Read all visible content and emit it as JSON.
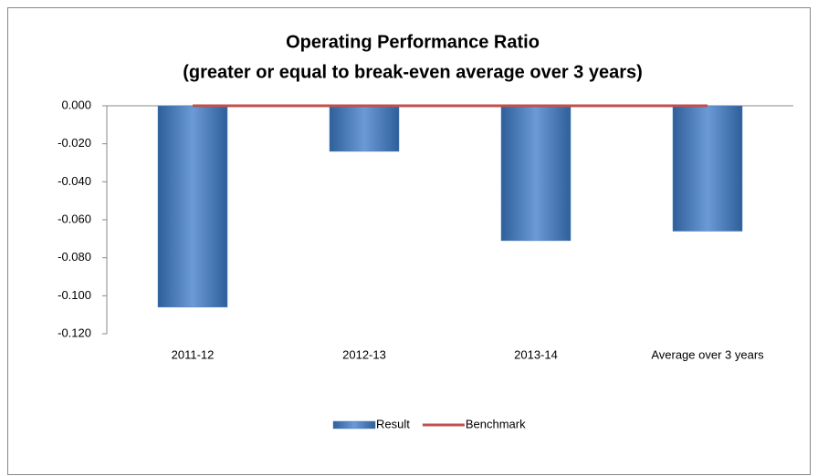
{
  "chart_data": {
    "type": "bar",
    "title": "Operating Performance Ratio",
    "subtitle": "(greater or equal to break-even average over 3 years)",
    "categories": [
      "2011-12",
      "2012-13",
      "2013-14",
      "Average over 3 years"
    ],
    "series": [
      {
        "name": "Result",
        "type": "bar",
        "color": "#4f81bd",
        "values": [
          -0.106,
          -0.024,
          -0.071,
          -0.066
        ]
      },
      {
        "name": "Benchmark",
        "type": "line",
        "color": "#c0504d",
        "values": [
          0,
          0,
          0,
          0
        ]
      }
    ],
    "ylim": [
      -0.12,
      0
    ],
    "yticks": [
      {
        "value": 0,
        "label": "0.000"
      },
      {
        "value": -0.02,
        "label": "-0.020"
      },
      {
        "value": -0.04,
        "label": "-0.040"
      },
      {
        "value": -0.06,
        "label": "-0.060"
      },
      {
        "value": -0.08,
        "label": "-0.080"
      },
      {
        "value": -0.1,
        "label": "-0.100"
      },
      {
        "value": -0.12,
        "label": "-0.120"
      }
    ],
    "grid": false,
    "legend": "bottom"
  }
}
